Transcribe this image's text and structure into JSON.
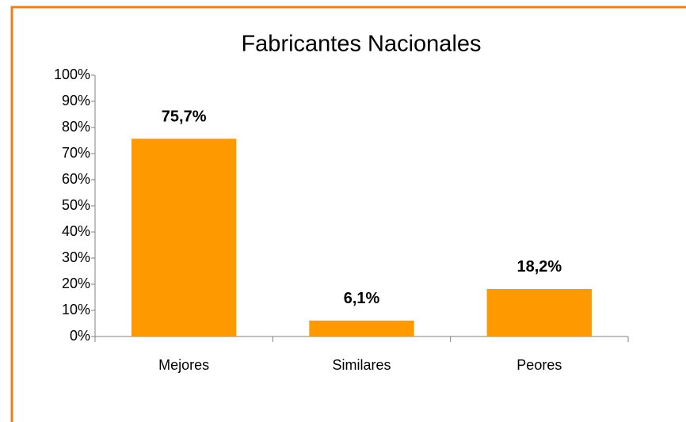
{
  "chart_data": {
    "type": "bar",
    "title": "Fabricantes Nacionales",
    "categories": [
      "Mejores",
      "Similares",
      "Peores"
    ],
    "values": [
      75.7,
      6.1,
      18.2
    ],
    "value_labels": [
      "75,7%",
      "6,1%",
      "18,2%"
    ],
    "color": "#ff9900",
    "ylim": [
      0,
      100
    ],
    "yticks": [
      {
        "value": 0,
        "label": "0%"
      },
      {
        "value": 10,
        "label": "10%"
      },
      {
        "value": 20,
        "label": "20%"
      },
      {
        "value": 30,
        "label": "30%"
      },
      {
        "value": 40,
        "label": "40%"
      },
      {
        "value": 50,
        "label": "50%"
      },
      {
        "value": 60,
        "label": "60%"
      },
      {
        "value": 70,
        "label": "70%"
      },
      {
        "value": 80,
        "label": "80%"
      },
      {
        "value": 90,
        "label": "90%"
      },
      {
        "value": 100,
        "label": "100%"
      }
    ],
    "grid": false
  }
}
